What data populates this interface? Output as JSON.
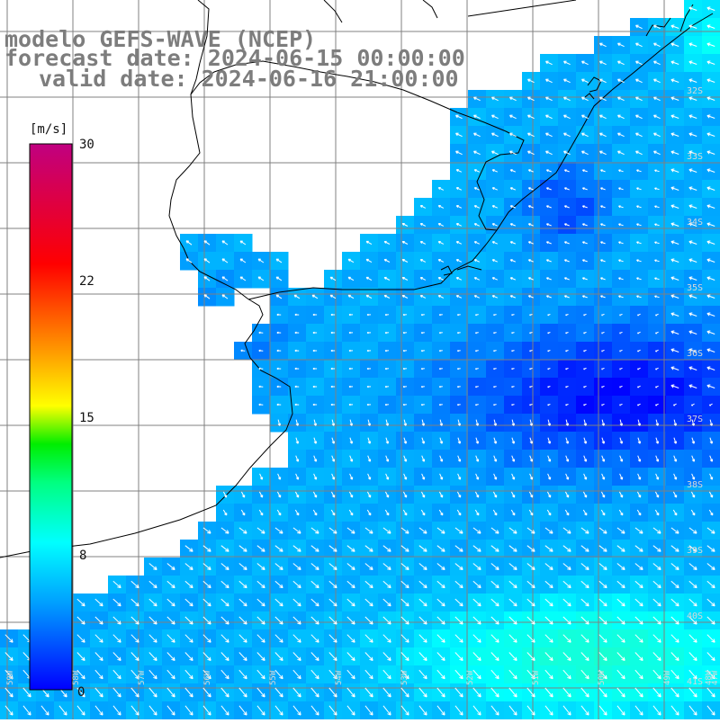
{
  "title": {
    "line1": "modelo GEFS-WAVE (NCEP)",
    "line2": "forecast date: 2024-06-15 00:00:00",
    "line3": "valid date: 2024-06-16 21:00:00"
  },
  "colorbar": {
    "unit": "[m/s]",
    "ticks": [
      "30",
      "22",
      "15",
      "8",
      "0"
    ]
  },
  "grid": {
    "lat_labels": [
      "32S",
      "33S",
      "34S",
      "35S",
      "36S",
      "37S",
      "38S",
      "39S",
      "40S",
      "41S"
    ],
    "lon_labels": [
      "59W",
      "58W",
      "57W",
      "56W",
      "55W",
      "54W",
      "53W",
      "52W",
      "51W",
      "50W",
      "49W",
      "48W",
      "47W"
    ]
  },
  "colors": {
    "land": "#ffffff",
    "coast": "#000000",
    "grid_line": "#808080",
    "arrow": "#ffffff",
    "title": "#7d7d7d",
    "scale_stops": [
      "#0000ff",
      "#00b0ff",
      "#00ffff",
      "#00ff00",
      "#ffff00",
      "#ff8000",
      "#ff0000",
      "#c00080"
    ]
  }
}
